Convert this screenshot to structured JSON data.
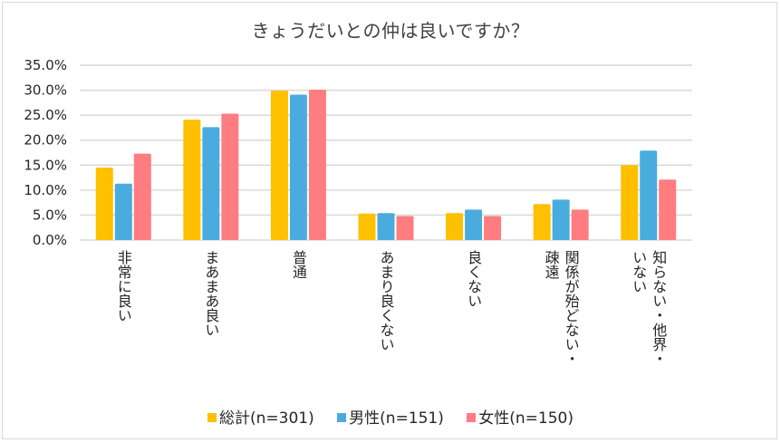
{
  "chart_data": {
    "type": "bar",
    "title": "きょうだいとの仲は良いですか？",
    "xlabel": "",
    "ylabel": "",
    "ylim": [
      0,
      35
    ],
    "yticks": [
      0,
      5,
      10,
      15,
      20,
      25,
      30,
      35
    ],
    "ytick_labels": [
      "0.0%",
      "5.0%",
      "10.0%",
      "15.0%",
      "20.0%",
      "25.0%",
      "30.0%",
      "35.0%"
    ],
    "grid": true,
    "legend_position": "bottom",
    "categories": [
      [
        "非常に良い"
      ],
      [
        "まあまあ良い"
      ],
      [
        "普通"
      ],
      [
        "あまり良くない"
      ],
      [
        "良くない"
      ],
      [
        "関係が殆どない・",
        "疎遠"
      ],
      [
        "知らない・他界・",
        "いない"
      ]
    ],
    "series": [
      {
        "name": "総計(n=301)",
        "color": "#FFC000",
        "values": [
          14.5,
          24.1,
          29.9,
          5.3,
          5.4,
          7.2,
          15.0
        ]
      },
      {
        "name": "男性(n=151)",
        "color": "#4AACDE",
        "values": [
          11.3,
          22.6,
          29.1,
          5.4,
          6.1,
          8.1,
          17.9
        ]
      },
      {
        "name": "女性(n=150)",
        "color": "#FF7C80",
        "values": [
          17.3,
          25.3,
          30.1,
          4.8,
          4.8,
          6.1,
          12.1
        ]
      }
    ]
  },
  "legend": {
    "items": [
      {
        "label": "総計(n=301)",
        "color": "#FFC000"
      },
      {
        "label": "男性(n=151)",
        "color": "#4AACDE"
      },
      {
        "label": "女性(n=150)",
        "color": "#FF7C80"
      }
    ]
  }
}
